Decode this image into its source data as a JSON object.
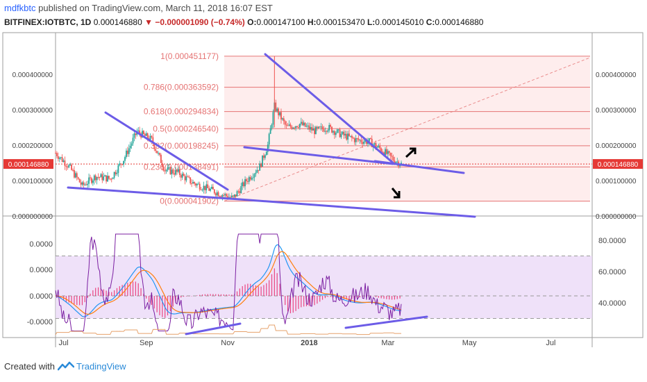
{
  "header": {
    "user": "mdfkbtc",
    "published_text": "published on TradingView.com, March 11, 2018 16:07 EST",
    "symbol": "BITFINEX:IOTBTC, 1D",
    "last": "0.000146880",
    "change": "▼ −0.000001090 (−0.74%)",
    "o_label": "O:",
    "o": "0.000147100",
    "h_label": "H:",
    "h": "0.000153470",
    "l_label": "L:",
    "l": "0.000145010",
    "c_label": "C:",
    "c": "0.000146880"
  },
  "footer": {
    "created_with": "Created with",
    "brand": "TradingView"
  },
  "colors": {
    "up": "#26a69a",
    "down": "#ef5350",
    "trendline": "#6c5ce7",
    "fib": "#e57373",
    "fib_fill": "#fde7e7",
    "macd": "#2196f3",
    "signal": "#ff7f0e",
    "rsi": "#7b1fa2",
    "rsi_band": "#ead7f7",
    "price_tag": "#e53935"
  },
  "chart_data": {
    "type": "line",
    "title": "BITFINEX:IOTBTC, 1D",
    "price_axis_labels": [
      "0.000400000",
      "0.000300000",
      "0.000200000",
      "0.000100000",
      "0.000000000"
    ],
    "price_axis_values": [
      0.0004,
      0.0003,
      0.0002,
      0.0001,
      0.0
    ],
    "current_price_label": "0.000146880",
    "current_price": 0.00014688,
    "x_tick_labels": [
      "Jul",
      "Sep",
      "Nov",
      "2018",
      "Mar",
      "May",
      "Jul"
    ],
    "fib_levels": [
      {
        "label": "1(0.000451177)",
        "value": 0.000451177
      },
      {
        "label": "0.786(0.000363592)",
        "value": 0.000363592
      },
      {
        "label": "0.618(0.000294834)",
        "value": 0.000294834
      },
      {
        "label": "0.5(0.000246540)",
        "value": 0.00024654
      },
      {
        "label": "0.382(0.000198245)",
        "value": 0.000198245
      },
      {
        "label": "0.236(0.000138491)",
        "value": 0.000138491
      },
      {
        "label": "0(0.000041902)",
        "value": 4.1902e-05
      }
    ],
    "price_series": [
      {
        "x": "2017-06-25",
        "y": 0.000178
      },
      {
        "x": "2017-07-05",
        "y": 0.00014
      },
      {
        "x": "2017-07-15",
        "y": 8.5e-05
      },
      {
        "x": "2017-07-25",
        "y": 0.000112
      },
      {
        "x": "2017-08-05",
        "y": 0.000105
      },
      {
        "x": "2017-08-15",
        "y": 0.00016
      },
      {
        "x": "2017-08-25",
        "y": 0.000238
      },
      {
        "x": "2017-09-05",
        "y": 0.000215
      },
      {
        "x": "2017-09-15",
        "y": 0.00013
      },
      {
        "x": "2017-09-25",
        "y": 0.000122
      },
      {
        "x": "2017-10-05",
        "y": 9.5e-05
      },
      {
        "x": "2017-10-15",
        "y": 8e-05
      },
      {
        "x": "2017-10-25",
        "y": 6.5e-05
      },
      {
        "x": "2017-11-05",
        "y": 5e-05
      },
      {
        "x": "2017-11-15",
        "y": 0.0001
      },
      {
        "x": "2017-11-25",
        "y": 0.00014
      },
      {
        "x": "2017-12-01",
        "y": 0.0002
      },
      {
        "x": "2017-12-06",
        "y": 0.00031
      },
      {
        "x": "2017-12-15",
        "y": 0.00025
      },
      {
        "x": "2017-12-25",
        "y": 0.00026
      },
      {
        "x": "2018-01-05",
        "y": 0.00024
      },
      {
        "x": "2018-01-15",
        "y": 0.00025
      },
      {
        "x": "2018-01-25",
        "y": 0.00023
      },
      {
        "x": "2018-02-05",
        "y": 0.000215
      },
      {
        "x": "2018-02-15",
        "y": 0.00021
      },
      {
        "x": "2018-02-25",
        "y": 0.000185
      },
      {
        "x": "2018-03-05",
        "y": 0.00016
      },
      {
        "x": "2018-03-11",
        "y": 0.000147
      }
    ],
    "indicator_axis_left": [
      "0.0000",
      "0.0000",
      "0.0000",
      "-0.0000"
    ],
    "indicator_axis_right": [
      "80.0000",
      "60.0000",
      "40.0000"
    ],
    "indicator_right_values": [
      80,
      60,
      40
    ]
  }
}
